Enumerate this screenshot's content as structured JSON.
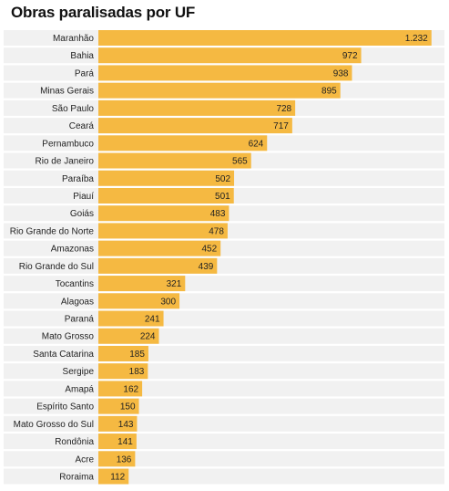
{
  "chart_data": {
    "type": "bar",
    "orientation": "horizontal",
    "title": "Obras paralisadas por UF",
    "xlim": [
      0,
      1280
    ],
    "bar_color": "#f5b942",
    "track_color": "#f1f1f1",
    "categories": [
      "Maranhão",
      "Bahia",
      "Pará",
      "Minas Gerais",
      "São Paulo",
      "Ceará",
      "Pernambuco",
      "Rio de Janeiro",
      "Paraíba",
      "Piauí",
      "Goiás",
      "Rio Grande do Norte",
      "Amazonas",
      "Rio Grande do Sul",
      "Tocantins",
      "Alagoas",
      "Paraná",
      "Mato Grosso",
      "Santa Catarina",
      "Sergipe",
      "Amapá",
      "Espírito Santo",
      "Mato Grosso do Sul",
      "Rondônia",
      "Acre",
      "Roraima"
    ],
    "values": [
      1232,
      972,
      938,
      895,
      728,
      717,
      624,
      565,
      502,
      501,
      483,
      478,
      452,
      439,
      321,
      300,
      241,
      224,
      185,
      183,
      162,
      150,
      143,
      141,
      136,
      112
    ],
    "value_labels": [
      "1.232",
      "972",
      "938",
      "895",
      "728",
      "717",
      "624",
      "565",
      "502",
      "501",
      "483",
      "478",
      "452",
      "439",
      "321",
      "300",
      "241",
      "224",
      "185",
      "183",
      "162",
      "150",
      "143",
      "141",
      "136",
      "112"
    ]
  }
}
